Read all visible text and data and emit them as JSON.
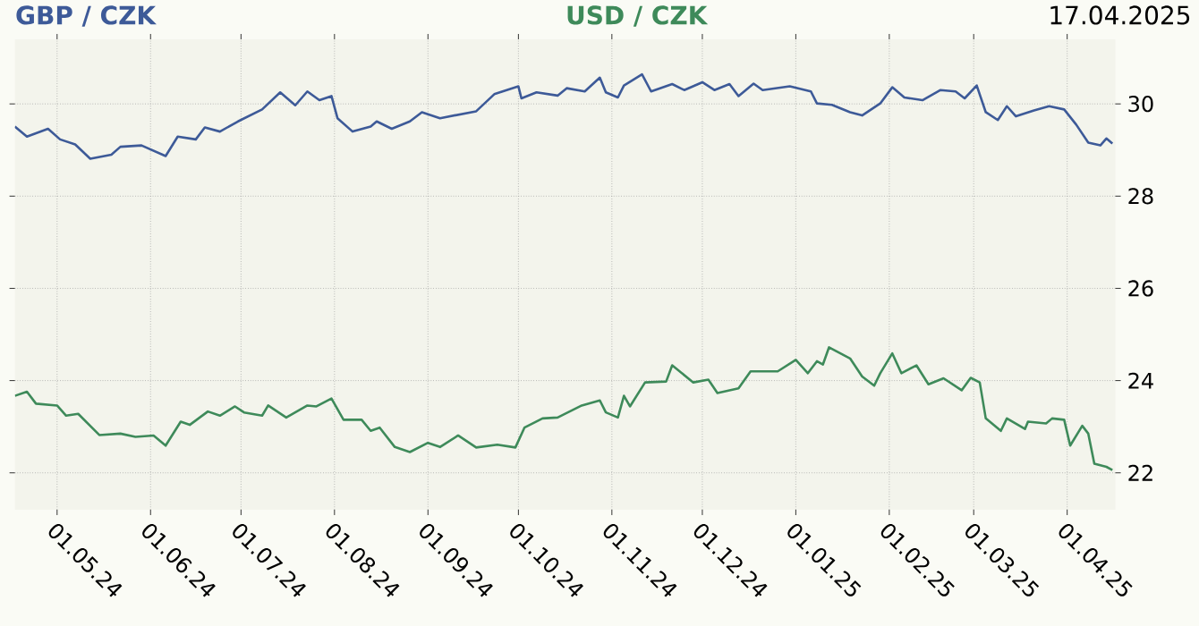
{
  "chart_data": {
    "type": "line",
    "annotations": [
      "17.04.2025"
    ],
    "legend": "top",
    "grid": true,
    "xlim": [
      "2024-04-17",
      "2025-04-17"
    ],
    "ylim": [
      21.2,
      31.4
    ],
    "yticks": [
      22,
      24,
      26,
      28,
      30
    ],
    "xticks": [
      {
        "value": "2024-05-01",
        "label": "01.05.24"
      },
      {
        "value": "2024-06-01",
        "label": "01.06.24"
      },
      {
        "value": "2024-07-01",
        "label": "01.07.24"
      },
      {
        "value": "2024-08-01",
        "label": "01.08.24"
      },
      {
        "value": "2024-09-01",
        "label": "01.09.24"
      },
      {
        "value": "2024-10-01",
        "label": "01.10.24"
      },
      {
        "value": "2024-11-01",
        "label": "01.11.24"
      },
      {
        "value": "2024-12-01",
        "label": "01.12.24"
      },
      {
        "value": "2025-01-01",
        "label": "01.01.25"
      },
      {
        "value": "2025-02-01",
        "label": "01.02.25"
      },
      {
        "value": "2025-03-01",
        "label": "01.03.25"
      },
      {
        "value": "2025-04-01",
        "label": "01.04.25"
      }
    ],
    "series": [
      {
        "name": "GBP / CZK",
        "color": "#3d5a98",
        "x": [
          "2024-04-17",
          "2024-04-21",
          "2024-04-28",
          "2024-05-02",
          "2024-05-07",
          "2024-05-12",
          "2024-05-19",
          "2024-05-22",
          "2024-05-29",
          "2024-06-06",
          "2024-06-10",
          "2024-06-16",
          "2024-06-19",
          "2024-06-24",
          "2024-06-30",
          "2024-07-08",
          "2024-07-14",
          "2024-07-19",
          "2024-07-23",
          "2024-07-27",
          "2024-07-31",
          "2024-08-02",
          "2024-08-07",
          "2024-08-13",
          "2024-08-15",
          "2024-08-20",
          "2024-08-26",
          "2024-08-30",
          "2024-09-05",
          "2024-09-17",
          "2024-09-23",
          "2024-10-01",
          "2024-10-02",
          "2024-10-07",
          "2024-10-14",
          "2024-10-17",
          "2024-10-23",
          "2024-10-28",
          "2024-10-30",
          "2024-11-03",
          "2024-11-05",
          "2024-11-11",
          "2024-11-14",
          "2024-11-21",
          "2024-11-25",
          "2024-12-01",
          "2024-12-05",
          "2024-12-10",
          "2024-12-13",
          "2024-12-18",
          "2024-12-21",
          "2024-12-30",
          "2025-01-06",
          "2025-01-08",
          "2025-01-13",
          "2025-01-19",
          "2025-01-23",
          "2025-01-29",
          "2025-02-02",
          "2025-02-06",
          "2025-02-12",
          "2025-02-18",
          "2025-02-23",
          "2025-02-26",
          "2025-03-02",
          "2025-03-05",
          "2025-03-09",
          "2025-03-12",
          "2025-03-15",
          "2025-03-21",
          "2025-03-26",
          "2025-03-31",
          "2025-04-04",
          "2025-04-08",
          "2025-04-12",
          "2025-04-14",
          "2025-04-16"
        ],
        "values": [
          29.51,
          29.29,
          29.46,
          29.23,
          29.12,
          28.81,
          28.9,
          29.07,
          29.1,
          28.87,
          29.29,
          29.23,
          29.49,
          29.4,
          29.62,
          29.88,
          30.25,
          29.97,
          30.27,
          30.08,
          30.17,
          29.69,
          29.4,
          29.51,
          29.62,
          29.46,
          29.62,
          29.82,
          29.69,
          29.84,
          30.21,
          30.38,
          30.12,
          30.25,
          30.18,
          30.34,
          30.27,
          30.57,
          30.25,
          30.14,
          30.4,
          30.64,
          30.27,
          30.43,
          30.3,
          30.47,
          30.3,
          30.43,
          30.17,
          30.44,
          30.3,
          30.38,
          30.27,
          30.01,
          29.98,
          29.82,
          29.75,
          30.01,
          30.36,
          30.14,
          30.08,
          30.3,
          30.27,
          30.12,
          30.4,
          29.82,
          29.65,
          29.95,
          29.73,
          29.86,
          29.95,
          29.88,
          29.55,
          29.16,
          29.1,
          29.25,
          29.14
        ]
      },
      {
        "name": "USD / CZK",
        "color": "#3e8a5a",
        "x": [
          "2024-04-17",
          "2024-04-21",
          "2024-04-24",
          "2024-05-01",
          "2024-05-04",
          "2024-05-08",
          "2024-05-15",
          "2024-05-22",
          "2024-05-27",
          "2024-06-02",
          "2024-06-06",
          "2024-06-11",
          "2024-06-14",
          "2024-06-20",
          "2024-06-24",
          "2024-06-29",
          "2024-07-02",
          "2024-07-08",
          "2024-07-10",
          "2024-07-16",
          "2024-07-23",
          "2024-07-26",
          "2024-07-31",
          "2024-08-04",
          "2024-08-10",
          "2024-08-13",
          "2024-08-16",
          "2024-08-21",
          "2024-08-26",
          "2024-09-01",
          "2024-09-05",
          "2024-09-11",
          "2024-09-17",
          "2024-09-24",
          "2024-09-30",
          "2024-10-03",
          "2024-10-09",
          "2024-10-14",
          "2024-10-22",
          "2024-10-28",
          "2024-10-30",
          "2024-11-03",
          "2024-11-05",
          "2024-11-07",
          "2024-11-12",
          "2024-11-19",
          "2024-11-21",
          "2024-11-28",
          "2024-12-03",
          "2024-12-06",
          "2024-12-13",
          "2024-12-17",
          "2024-12-26",
          "2025-01-01",
          "2025-01-05",
          "2025-01-08",
          "2025-01-10",
          "2025-01-12",
          "2025-01-19",
          "2025-01-23",
          "2025-01-27",
          "2025-01-29",
          "2025-02-02",
          "2025-02-05",
          "2025-02-10",
          "2025-02-14",
          "2025-02-19",
          "2025-02-25",
          "2025-02-28",
          "2025-03-03",
          "2025-03-05",
          "2025-03-10",
          "2025-03-12",
          "2025-03-18",
          "2025-03-19",
          "2025-03-25",
          "2025-03-27",
          "2025-03-31",
          "2025-04-02",
          "2025-04-06",
          "2025-04-08",
          "2025-04-10",
          "2025-04-14",
          "2025-04-16"
        ],
        "values": [
          23.67,
          23.76,
          23.5,
          23.46,
          23.24,
          23.28,
          22.82,
          22.85,
          22.78,
          22.81,
          22.59,
          23.11,
          23.04,
          23.33,
          23.24,
          23.44,
          23.31,
          23.24,
          23.46,
          23.2,
          23.46,
          23.44,
          23.61,
          23.15,
          23.15,
          22.91,
          22.98,
          22.56,
          22.45,
          22.65,
          22.56,
          22.81,
          22.55,
          22.61,
          22.55,
          22.98,
          23.18,
          23.2,
          23.46,
          23.57,
          23.31,
          23.2,
          23.67,
          23.44,
          23.96,
          23.98,
          24.33,
          23.96,
          24.02,
          23.73,
          23.83,
          24.2,
          24.2,
          24.45,
          24.16,
          24.42,
          24.35,
          24.72,
          24.48,
          24.09,
          23.89,
          24.16,
          24.59,
          24.16,
          24.33,
          23.92,
          24.05,
          23.79,
          24.06,
          23.96,
          23.18,
          22.91,
          23.18,
          22.95,
          23.11,
          23.07,
          23.18,
          23.15,
          22.59,
          23.02,
          22.85,
          22.2,
          22.13,
          22.06
        ]
      }
    ]
  }
}
